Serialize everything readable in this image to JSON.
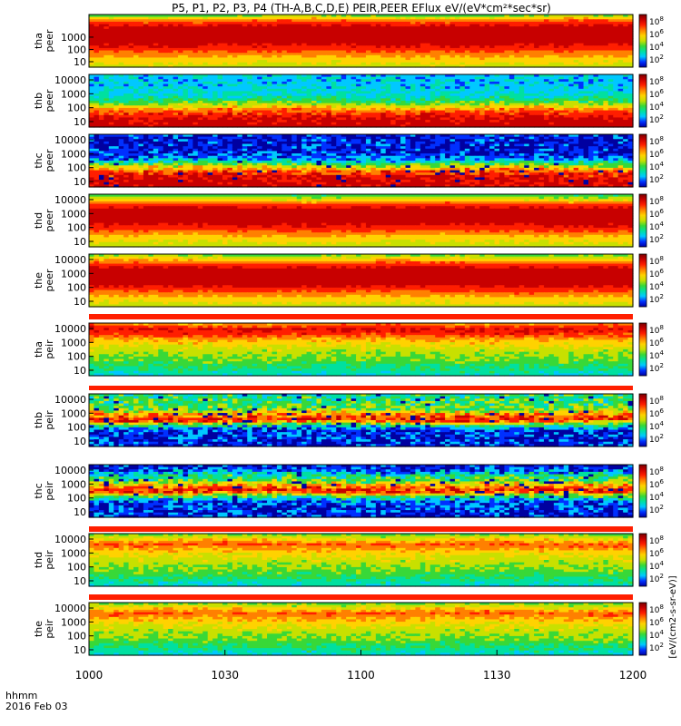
{
  "title": "P5, P1, P2, P3, P4 (TH-A,B,C,D,E) PEIR,PEER EFlux eV/(eV*cm²*sec*sr)",
  "time_label": {
    "line1": "hhmm",
    "line2": "2016 Feb 03"
  },
  "colorbar_label": "[eV/(cm2-s-sr-eV)]",
  "colorbar_ticks": [
    {
      "base": "10",
      "exp": "2"
    },
    {
      "base": "10",
      "exp": "4"
    },
    {
      "base": "10",
      "exp": "6"
    },
    {
      "base": "10",
      "exp": "8"
    }
  ],
  "colormap": [
    "#0000a0",
    "#0030ff",
    "#00c8ff",
    "#00e0a0",
    "#38d838",
    "#c8e000",
    "#ffd200",
    "#ff8000",
    "#ff1e00",
    "#c80000",
    "#7a0000"
  ],
  "chart_data": {
    "type": "heatmap",
    "description_units": "energy flux eV/(eV*cm^2*sec*sr)",
    "x": {
      "ticks": [
        "1000",
        "1030",
        "1100",
        "1130",
        "1200"
      ],
      "range": [
        "10:00",
        "12:00"
      ]
    },
    "y": {
      "scale": "log",
      "ticks": [
        "10",
        "100",
        "1000",
        "10000"
      ]
    },
    "panels": [
      {
        "label_line1": "tha",
        "label_line2": "peer",
        "yticks": [
          "10",
          "100",
          "1000"
        ],
        "profile": [
          0.55,
          0.62,
          0.7,
          0.8,
          0.9,
          0.95,
          0.97,
          0.96,
          0.9,
          0.75,
          0.4
        ],
        "noise": 0.03
      },
      {
        "label_line1": "thb",
        "label_line2": "peer",
        "yticks": [
          "10",
          "100",
          "1000",
          "10000"
        ],
        "profile": [
          0.98,
          0.96,
          0.9,
          0.8,
          0.6,
          0.4,
          0.3,
          0.28,
          0.26,
          0.25,
          0.25
        ],
        "noise": 0.08
      },
      {
        "label_line1": "thc",
        "label_line2": "peer",
        "yticks": [
          "10",
          "100",
          "1000",
          "10000"
        ],
        "profile": [
          0.97,
          0.96,
          0.92,
          0.8,
          0.55,
          0.25,
          0.15,
          0.12,
          0.1,
          0.1,
          0.12
        ],
        "noise": 0.12
      },
      {
        "label_line1": "thd",
        "label_line2": "peer",
        "yticks": [
          "10",
          "100",
          "1000",
          "10000"
        ],
        "profile": [
          0.55,
          0.6,
          0.68,
          0.8,
          0.9,
          0.95,
          0.97,
          0.95,
          0.85,
          0.6,
          0.4
        ],
        "noise": 0.03
      },
      {
        "label_line1": "the",
        "label_line2": "peer",
        "yticks": [
          "10",
          "100",
          "1000",
          "10000"
        ],
        "profile": [
          0.55,
          0.62,
          0.7,
          0.82,
          0.92,
          0.96,
          0.97,
          0.95,
          0.85,
          0.65,
          0.45
        ],
        "noise": 0.03
      },
      {
        "label_line1": "tha",
        "label_line2": "peir",
        "yticks": [
          "10",
          "100",
          "1000",
          "10000"
        ],
        "profile": [
          0.3,
          0.36,
          0.42,
          0.48,
          0.52,
          0.56,
          0.62,
          0.72,
          0.86,
          0.9,
          0.7
        ],
        "noise": 0.06
      },
      {
        "label_line1": "thb",
        "label_line2": "peir",
        "yticks": [
          "10",
          "100",
          "1000",
          "10000"
        ],
        "profile": [
          0.1,
          0.12,
          0.14,
          0.14,
          0.35,
          0.9,
          0.75,
          0.5,
          0.42,
          0.4,
          0.38
        ],
        "noise": 0.15
      },
      {
        "label_line1": "thc",
        "label_line2": "peir",
        "yticks": [
          "10",
          "100",
          "1000",
          "10000"
        ],
        "profile": [
          0.1,
          0.12,
          0.14,
          0.16,
          0.45,
          0.92,
          0.7,
          0.45,
          0.35,
          0.15,
          0.1
        ],
        "noise": 0.15
      },
      {
        "label_line1": "thd",
        "label_line2": "peir",
        "yticks": [
          "10",
          "100",
          "1000",
          "10000"
        ],
        "profile": [
          0.3,
          0.36,
          0.42,
          0.48,
          0.52,
          0.56,
          0.62,
          0.7,
          0.8,
          0.62,
          0.45
        ],
        "noise": 0.06
      },
      {
        "label_line1": "the",
        "label_line2": "peir",
        "yticks": [
          "10",
          "100",
          "1000",
          "10000"
        ],
        "profile": [
          0.3,
          0.36,
          0.42,
          0.48,
          0.52,
          0.56,
          0.62,
          0.7,
          0.8,
          0.62,
          0.45
        ],
        "noise": 0.06
      }
    ]
  }
}
